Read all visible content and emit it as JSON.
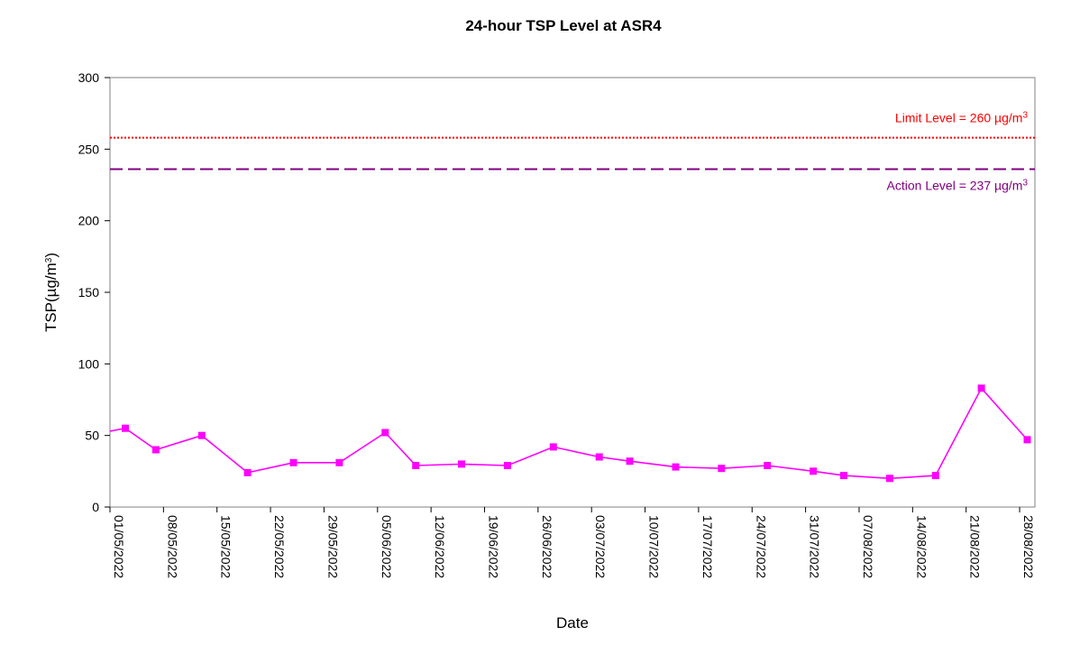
{
  "chart_data": {
    "type": "line",
    "title": "24-hour TSP Level at ASR4",
    "xlabel": "Date",
    "ylabel": {
      "prefix": "TSP(",
      "unit": "µg/m",
      "sup": "3",
      "suffix": ")"
    },
    "ylim": [
      0,
      300
    ],
    "yticks": [
      0,
      50,
      100,
      150,
      200,
      250,
      300
    ],
    "xlim": [
      "2022-05-01",
      "2022-08-30"
    ],
    "xtick_labels": [
      "01/05/2022",
      "08/05/2022",
      "15/05/2022",
      "22/05/2022",
      "29/05/2022",
      "05/06/2022",
      "12/06/2022",
      "19/06/2022",
      "26/06/2022",
      "03/07/2022",
      "10/07/2022",
      "17/07/2022",
      "24/07/2022",
      "31/07/2022",
      "07/08/2022",
      "14/08/2022",
      "21/08/2022",
      "28/08/2022"
    ],
    "xtick_dates": [
      "2022-05-01",
      "2022-05-08",
      "2022-05-15",
      "2022-05-22",
      "2022-05-29",
      "2022-06-05",
      "2022-06-12",
      "2022-06-19",
      "2022-06-26",
      "2022-07-03",
      "2022-07-10",
      "2022-07-17",
      "2022-07-24",
      "2022-07-31",
      "2022-08-07",
      "2022-08-14",
      "2022-08-21",
      "2022-08-28"
    ],
    "grid": false,
    "series": [
      {
        "color": "#ff00ff",
        "marker": "square",
        "x": [
          "2022-05-03",
          "2022-05-07",
          "2022-05-13",
          "2022-05-19",
          "2022-05-25",
          "2022-05-31",
          "2022-06-06",
          "2022-06-10",
          "2022-06-16",
          "2022-06-22",
          "2022-06-28",
          "2022-07-04",
          "2022-07-08",
          "2022-07-14",
          "2022-07-20",
          "2022-07-26",
          "2022-08-01",
          "2022-08-05",
          "2022-08-11",
          "2022-08-17",
          "2022-08-23",
          "2022-08-29"
        ],
        "y": [
          55,
          40,
          50,
          24,
          31,
          31,
          52,
          29,
          30,
          29,
          42,
          35,
          32,
          28,
          27,
          29,
          25,
          22,
          20,
          22,
          83,
          47
        ],
        "lead_in_y": 53
      }
    ],
    "reference_lines": [
      {
        "label": "Limit Level = 260 ",
        "unit": "µg/m",
        "sup": "3",
        "value": 260,
        "plotted_at": 258,
        "color": "#ff0000",
        "style": "dotted"
      },
      {
        "label": "Action Level = 237 ",
        "unit": "µg/m",
        "sup": "3",
        "value": 237,
        "plotted_at": 236,
        "color": "#800080",
        "style": "dashed"
      }
    ]
  }
}
